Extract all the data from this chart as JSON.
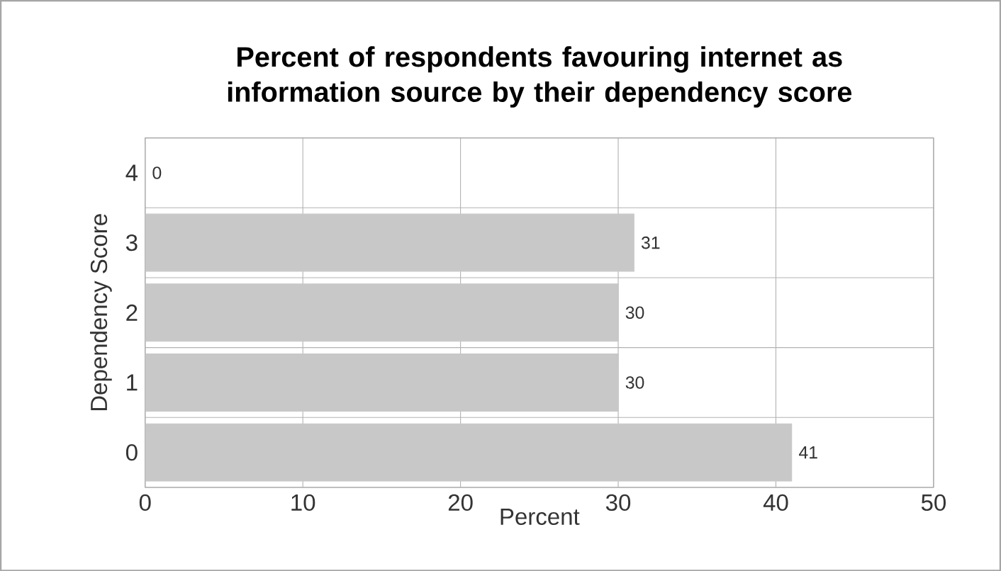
{
  "chart_data": {
    "type": "bar",
    "orientation": "horizontal",
    "title": "Percent of respondents favouring internet as\ninformation source by their dependency score",
    "xlabel": "Percent",
    "ylabel": "Dependency Score",
    "categories": [
      "4",
      "3",
      "2",
      "1",
      "0"
    ],
    "values": [
      0,
      31,
      30,
      30,
      41
    ],
    "color": "#c8c8c8",
    "data_labels": true,
    "xlim": [
      0,
      50
    ],
    "xticks": [
      0,
      10,
      20,
      30,
      40,
      50
    ],
    "grid": true
  }
}
